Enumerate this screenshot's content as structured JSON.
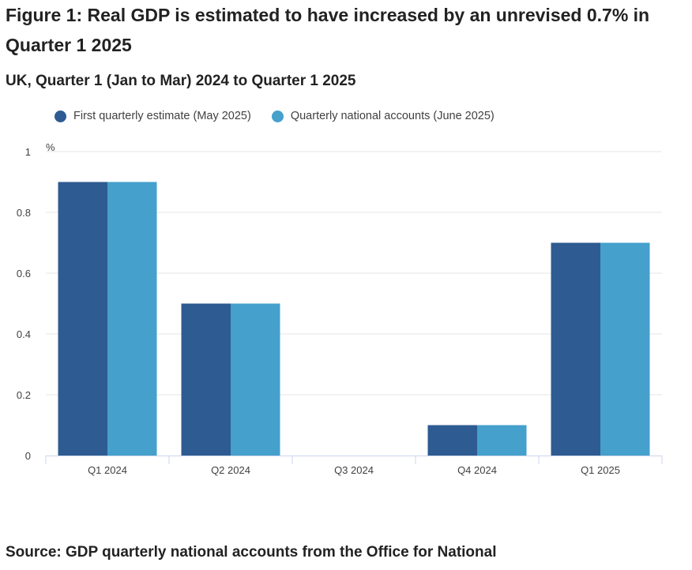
{
  "figure": {
    "title": "Figure 1: Real GDP is estimated to have increased by an unrevised 0.7% in Quarter 1 2025",
    "subtitle": "UK, Quarter 1 (Jan to Mar) 2024 to Quarter 1 2025",
    "source": "Source: GDP quarterly national accounts from the Office for National"
  },
  "chart_data": {
    "type": "bar",
    "categories": [
      "Q1 2024",
      "Q2 2024",
      "Q3 2024",
      "Q4 2024",
      "Q1 2025"
    ],
    "series": [
      {
        "name": "First quarterly estimate (May 2025)",
        "values": [
          0.9,
          0.5,
          0.0,
          0.1,
          0.7
        ],
        "color": "#2e5b91"
      },
      {
        "name": "Quarterly national accounts (June 2025)",
        "values": [
          0.9,
          0.5,
          0.0,
          0.1,
          0.7
        ],
        "color": "#45a0cc"
      }
    ],
    "ylabel": "%",
    "ylim": [
      0,
      1
    ],
    "yticks": [
      0,
      0.2,
      0.4,
      0.6,
      0.8,
      1
    ],
    "ytick_labels": [
      "0",
      "0.2",
      "0.4",
      "0.6",
      "0.8",
      "1"
    ],
    "grid": true,
    "legend_position": "top-left"
  }
}
